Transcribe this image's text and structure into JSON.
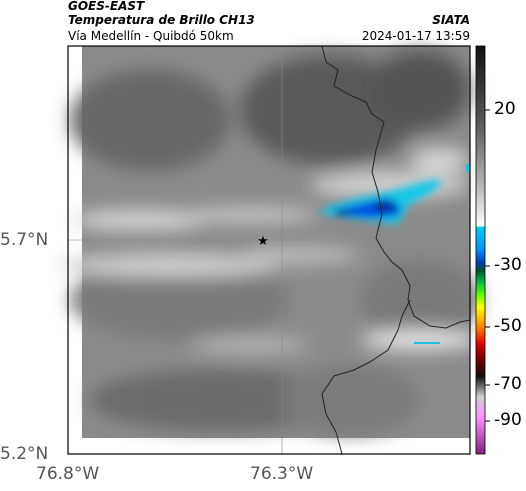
{
  "header": {
    "satellite": "GOES-EAST",
    "product": "Temperatura de Brillo CH13",
    "region": "Vía Medellín - Quibdó 50km",
    "organization": "SIATA",
    "timestamp": "2024-01-17 13:59"
  },
  "axes": {
    "lat_labels": [
      "5.7°N",
      "5.2°N"
    ],
    "lon_labels": [
      "76.8°W",
      "76.3°W"
    ]
  },
  "colorbar": {
    "labels": [
      "20",
      "-30",
      "-50",
      "-70",
      "-90"
    ],
    "colors": [
      "#111111",
      "#3a3a3a",
      "#707070",
      "#a8a8a8",
      "#dcdcdc",
      "#ffffff",
      "#00c8e0",
      "#0060ff",
      "#00a040",
      "#40ff00",
      "#ffff00",
      "#ff8000",
      "#e00000",
      "#600000",
      "#181818",
      "#b0b0b0",
      "#ff80ff",
      "#902090"
    ]
  },
  "marker": {
    "icon": "star-icon"
  }
}
